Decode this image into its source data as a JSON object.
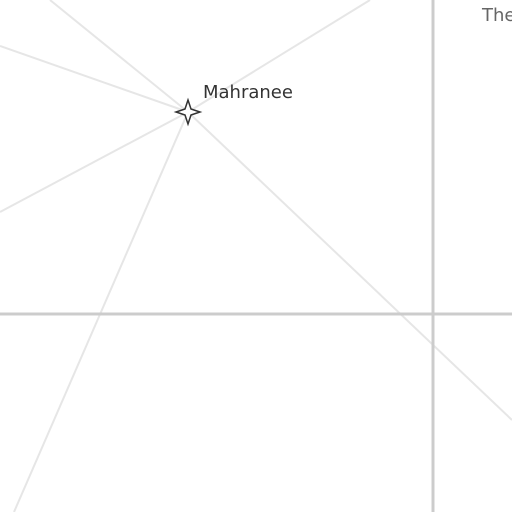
{
  "map": {
    "background_color": "#ffffff",
    "road_color_minor": "#e6e6e6",
    "road_color_major": "#cccccc",
    "poi": {
      "label": "Mahranee",
      "icon": "four-point-star-icon",
      "icon_color": "#333333"
    },
    "edge_label": "The"
  }
}
